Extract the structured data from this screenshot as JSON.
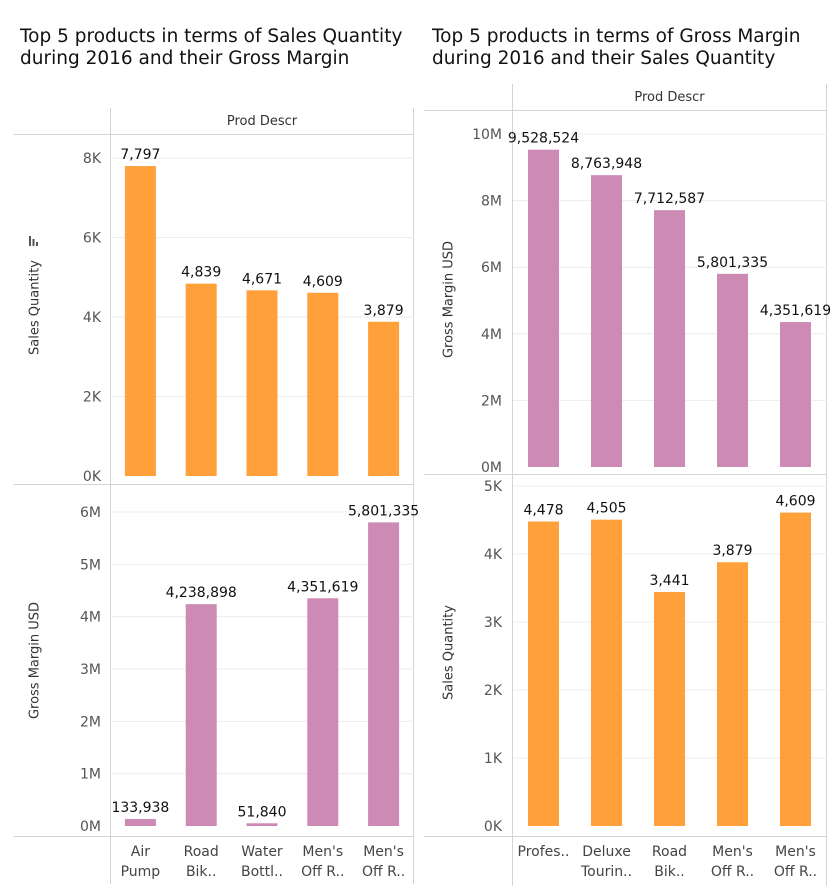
{
  "left_panel": {
    "title": "Top 5 products in terms of Sales Quantity during 2016 and their Gross Margin",
    "column_header": "Prod Descr",
    "categories": [
      "Air\nPump",
      "Road\nBik..",
      "Water\nBottl..",
      "Men's\nOff R..",
      "Men's\nOff R.."
    ]
  },
  "right_panel": {
    "title": "Top 5 products in terms of Gross Margin during 2016 and their Sales Quantity",
    "column_header": "Prod Descr",
    "categories": [
      "Profes..",
      "Deluxe\nTourin..",
      "Road\nBik..",
      "Men's\nOff R..",
      "Men's\nOff R.."
    ]
  },
  "icons": {
    "sort": "sort-descending-icon"
  },
  "colors": {
    "orange": "#FFA03A",
    "pink": "#CC8AB4",
    "grid": "#ececec",
    "border": "#d4d4d4"
  },
  "chart_data": [
    {
      "type": "bar",
      "name_key": "top-left",
      "categories": [
        "Air Pump",
        "Road Bik..",
        "Water Bottl..",
        "Men's Off R..",
        "Men's Off R.."
      ],
      "values": [
        7797,
        4839,
        4671,
        4609,
        3879
      ],
      "labels": [
        "7,797",
        "4,839",
        "4,671",
        "4,609",
        "3,879"
      ],
      "ylabel": "Sales Quantity",
      "ylim": [
        0,
        8000
      ],
      "ticks": [
        0,
        2000,
        4000,
        6000,
        8000
      ],
      "tick_labels": [
        "0K",
        "2K",
        "4K",
        "6K",
        "8K"
      ],
      "color": "#FFA03A"
    },
    {
      "type": "bar",
      "name_key": "bottom-left",
      "categories": [
        "Air Pump",
        "Road Bik..",
        "Water Bottl..",
        "Men's Off R..",
        "Men's Off R.."
      ],
      "values": [
        133938,
        4238898,
        51840,
        4351619,
        5801335
      ],
      "labels": [
        "133,938",
        "4,238,898",
        "51,840",
        "4,351,619",
        "5,801,335"
      ],
      "ylabel": "Gross Margin USD",
      "ylim": [
        0,
        6000000
      ],
      "ticks": [
        0,
        1000000,
        2000000,
        3000000,
        4000000,
        5000000,
        6000000
      ],
      "tick_labels": [
        "0M",
        "1M",
        "2M",
        "3M",
        "4M",
        "5M",
        "6M"
      ],
      "color": "#CC8AB4"
    },
    {
      "type": "bar",
      "name_key": "top-right",
      "categories": [
        "Profes..",
        "Deluxe Tourin..",
        "Road Bik..",
        "Men's Off R..",
        "Men's Off R.."
      ],
      "values": [
        9528524,
        8763948,
        7712587,
        5801335,
        4351619
      ],
      "labels": [
        "9,528,524",
        "8,763,948",
        "7,712,587",
        "5,801,335",
        "4,351,619"
      ],
      "ylabel": "Gross Margin USD",
      "ylim": [
        0,
        10000000
      ],
      "ticks": [
        0,
        2000000,
        4000000,
        6000000,
        8000000,
        10000000
      ],
      "tick_labels": [
        "0M",
        "2M",
        "4M",
        "6M",
        "8M",
        "10M"
      ],
      "color": "#CC8AB4"
    },
    {
      "type": "bar",
      "name_key": "bottom-right",
      "categories": [
        "Profes..",
        "Deluxe Tourin..",
        "Road Bik..",
        "Men's Off R..",
        "Men's Off R.."
      ],
      "values": [
        4478,
        4505,
        3441,
        3879,
        4609
      ],
      "labels": [
        "4,478",
        "4,505",
        "3,441",
        "3,879",
        "4,609"
      ],
      "ylabel": "Sales Quantity",
      "ylim": [
        0,
        5000
      ],
      "ticks": [
        0,
        1000,
        2000,
        3000,
        4000,
        5000
      ],
      "tick_labels": [
        "0K",
        "1K",
        "2K",
        "3K",
        "4K",
        "5K"
      ],
      "color": "#FFA03A"
    }
  ]
}
